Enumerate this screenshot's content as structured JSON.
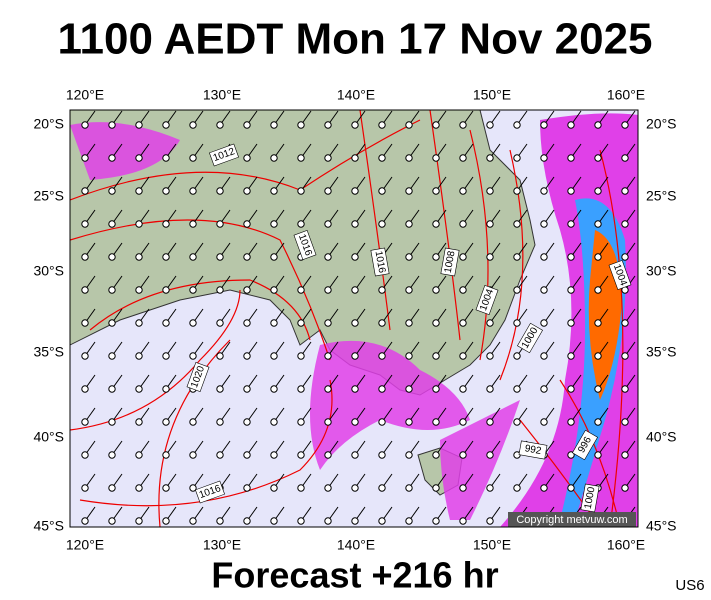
{
  "header": {
    "title": "1100 AEDT Mon 17 Nov 2025"
  },
  "map": {
    "lon_labels": [
      "120°E",
      "130°E",
      "140°E",
      "150°E",
      "160°E"
    ],
    "lat_labels": [
      "20°S",
      "25°S",
      "30°S",
      "35°S",
      "40°S",
      "45°S"
    ],
    "isobar_labels": [
      "1012",
      "1016",
      "1016",
      "1008",
      "1004",
      "1000",
      "1004",
      "1020",
      "1016",
      "992",
      "996",
      "1000"
    ],
    "copyright": "Copyright metvuw.com"
  },
  "footer": {
    "forecast": "Forecast +216 hr",
    "code": "US6"
  }
}
